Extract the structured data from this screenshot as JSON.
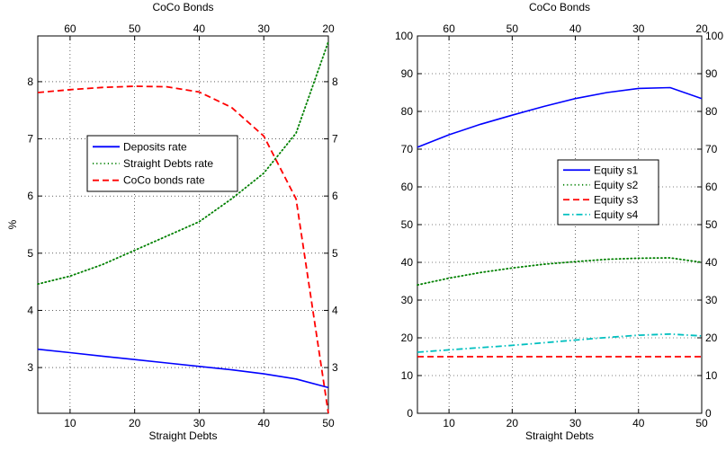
{
  "chart_data": [
    {
      "type": "line",
      "title": "",
      "xlabel": "Straight Debts",
      "x2label": "CoCo Bonds",
      "ylabel": "%",
      "xlim": [
        5,
        50
      ],
      "x2lim": [
        65,
        20
      ],
      "ylim": [
        2.2,
        8.8
      ],
      "x_ticks": [
        10,
        20,
        30,
        40,
        50
      ],
      "x2_ticks": [
        60,
        50,
        40,
        30,
        20
      ],
      "y_ticks": [
        3,
        4,
        5,
        6,
        7,
        8
      ],
      "y_right_ticks": [
        3,
        4,
        5,
        6,
        7,
        8
      ],
      "grid": true,
      "legend_position": "center",
      "series": [
        {
          "name": "Deposits rate",
          "color": "#0000ff",
          "style": "solid",
          "x": [
            5,
            10,
            15,
            20,
            25,
            30,
            35,
            40,
            45,
            50
          ],
          "y": [
            3.32,
            3.26,
            3.2,
            3.14,
            3.08,
            3.02,
            2.96,
            2.89,
            2.8,
            2.65
          ]
        },
        {
          "name": "Straight Debts rate",
          "color": "#008000",
          "style": "dotted",
          "x": [
            5,
            10,
            15,
            20,
            25,
            30,
            35,
            40,
            45,
            50
          ],
          "y": [
            4.46,
            4.6,
            4.8,
            5.05,
            5.3,
            5.55,
            5.95,
            6.4,
            7.1,
            8.7
          ]
        },
        {
          "name": "CoCo bonds rate",
          "color": "#ff0000",
          "style": "dashed",
          "x": [
            5,
            10,
            15,
            20,
            25,
            30,
            35,
            40,
            45,
            50
          ],
          "y": [
            7.81,
            7.86,
            7.9,
            7.92,
            7.91,
            7.82,
            7.55,
            7.05,
            5.95,
            2.2
          ]
        }
      ]
    },
    {
      "type": "line",
      "title": "",
      "xlabel": "Straight Debts",
      "x2label": "CoCo Bonds",
      "ylabel": "",
      "xlim": [
        5,
        50
      ],
      "x2lim": [
        65,
        20
      ],
      "ylim": [
        0,
        100
      ],
      "x_ticks": [
        10,
        20,
        30,
        40,
        50
      ],
      "x2_ticks": [
        60,
        50,
        40,
        30,
        20
      ],
      "y_ticks": [
        0,
        10,
        20,
        30,
        40,
        50,
        60,
        70,
        80,
        90,
        100
      ],
      "y_right_ticks": [
        0,
        10,
        20,
        30,
        40,
        50,
        60,
        70,
        80,
        90,
        100
      ],
      "grid": true,
      "legend_position": "center-right",
      "series": [
        {
          "name": "Equity s1",
          "color": "#0000ff",
          "style": "solid",
          "x": [
            5,
            10,
            15,
            20,
            25,
            30,
            35,
            40,
            45,
            50
          ],
          "y": [
            70.5,
            73.8,
            76.6,
            79.0,
            81.3,
            83.4,
            85.0,
            86.1,
            86.3,
            83.4
          ]
        },
        {
          "name": "Equity s2",
          "color": "#008000",
          "style": "dotted",
          "x": [
            5,
            10,
            15,
            20,
            25,
            30,
            35,
            40,
            45,
            50
          ],
          "y": [
            34.0,
            35.8,
            37.3,
            38.5,
            39.5,
            40.2,
            40.8,
            41.1,
            41.2,
            40.0
          ]
        },
        {
          "name": "Equity s3",
          "color": "#ff0000",
          "style": "dashed",
          "x": [
            5,
            10,
            15,
            20,
            25,
            30,
            35,
            40,
            45,
            50
          ],
          "y": [
            15,
            15,
            15,
            15,
            15,
            15,
            15,
            15,
            15,
            15
          ]
        },
        {
          "name": "Equity s4",
          "color": "#00bfbf",
          "style": "dashdot",
          "x": [
            5,
            10,
            15,
            20,
            25,
            30,
            35,
            40,
            45,
            50
          ],
          "y": [
            16.2,
            16.8,
            17.4,
            18.0,
            18.7,
            19.4,
            20.1,
            20.7,
            21.0,
            20.5
          ]
        }
      ]
    }
  ]
}
